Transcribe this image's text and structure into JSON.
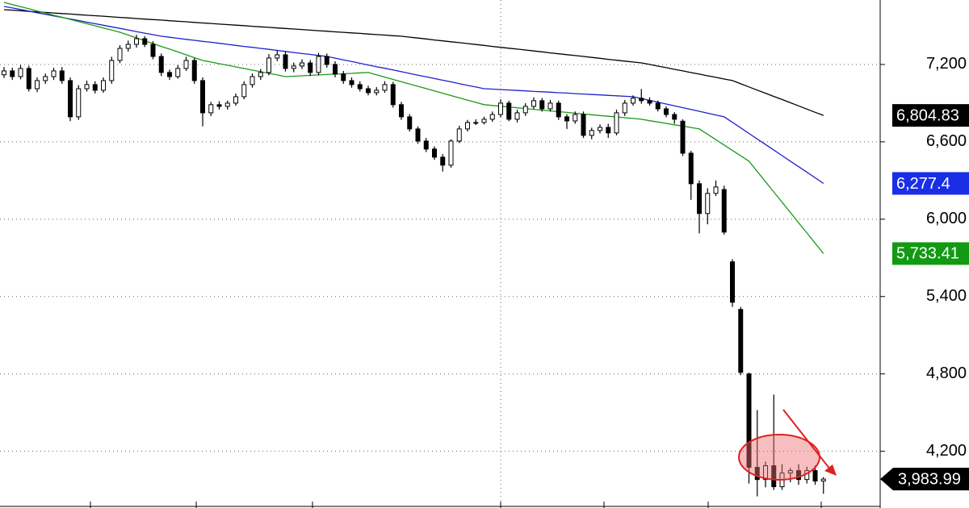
{
  "chart_data": {
    "type": "candlestick",
    "ylim": [
      3760,
      7700
    ],
    "yticks": [
      {
        "value": 4200,
        "label": "4,200"
      },
      {
        "value": 4800,
        "label": "4,800"
      },
      {
        "value": 5400,
        "label": "5,400"
      },
      {
        "value": 6000,
        "label": "6,000"
      },
      {
        "value": 6600,
        "label": "6,600"
      },
      {
        "value": 7200,
        "label": "7,200"
      }
    ],
    "grid": true,
    "up_color": "#ffffff",
    "down_color": "#000000",
    "open": [
      7120,
      7150,
      7106,
      7169,
      7012,
      7075,
      7106,
      7150,
      7075,
      6794,
      7012,
      7044,
      7000,
      7075,
      7231,
      7325,
      7356,
      7400,
      7356,
      7262,
      7138,
      7106,
      7169,
      7231,
      7075,
      6825,
      6888,
      6875,
      6900,
      6950,
      7044,
      7106,
      7138,
      7250,
      7275,
      7169,
      7188,
      7212,
      7138,
      7262,
      7200,
      7125,
      7075,
      7044,
      7012,
      6981,
      7000,
      7044,
      6888,
      6794,
      6700,
      6606,
      6544,
      6481,
      6419,
      6606,
      6700,
      6750,
      6750,
      6775,
      6812,
      6900,
      6775,
      6825,
      6875,
      6919,
      6856,
      6900,
      6794,
      6762,
      6812,
      6650,
      6688,
      6712,
      6669,
      6825,
      6900,
      6938,
      6919,
      6900,
      6856,
      6812,
      6760,
      6512,
      6275,
      6044,
      6200,
      6230,
      5669,
      5300,
      4800,
      4075,
      3981,
      4088,
      3925,
      4031,
      4050,
      3981,
      4050,
      3969
    ],
    "high": [
      7180,
      7175,
      7195,
      7190,
      7100,
      7130,
      7175,
      7180,
      7100,
      7040,
      7075,
      7070,
      7100,
      7260,
      7350,
      7385,
      7430,
      7420,
      7380,
      7285,
      7160,
      7195,
      7260,
      7250,
      7100,
      6910,
      6915,
      6920,
      6975,
      7070,
      7130,
      7165,
      7280,
      7310,
      7300,
      7215,
      7240,
      7235,
      7290,
      7285,
      7225,
      7150,
      7100,
      7070,
      7035,
      7025,
      7070,
      7065,
      6910,
      6815,
      6720,
      6630,
      6565,
      6505,
      6620,
      6725,
      6770,
      6775,
      6795,
      6835,
      6930,
      6920,
      6850,
      6900,
      6945,
      6940,
      6925,
      6920,
      6815,
      6835,
      6835,
      6710,
      6735,
      6740,
      6850,
      6925,
      6960,
      7010,
      6945,
      6920,
      6875,
      6830,
      6775,
      6530,
      6300,
      6240,
      6300,
      6260,
      5690,
      5320,
      4810,
      4520,
      4120,
      4640,
      4100,
      4070,
      4100,
      4080,
      4090,
      4000
    ],
    "low": [
      7095,
      7080,
      7085,
      6990,
      6985,
      7050,
      7080,
      7050,
      6760,
      6770,
      6990,
      6975,
      6980,
      7050,
      7210,
      7300,
      7330,
      7335,
      7240,
      7110,
      7080,
      7090,
      7150,
      7050,
      6720,
      6800,
      6850,
      6850,
      6880,
      6930,
      7020,
      7080,
      7115,
      7225,
      7145,
      7140,
      7165,
      7110,
      7115,
      7175,
      7100,
      7050,
      7020,
      6990,
      6960,
      6960,
      6980,
      6865,
      6770,
      6680,
      6585,
      6520,
      6460,
      6370,
      6400,
      6590,
      6680,
      6730,
      6735,
      6755,
      6790,
      6760,
      6750,
      6800,
      6855,
      6835,
      6835,
      6770,
      6700,
      6740,
      6630,
      6620,
      6665,
      6630,
      6650,
      6800,
      6880,
      6895,
      6880,
      6835,
      6790,
      6740,
      6490,
      6150,
      5890,
      5960,
      6180,
      5880,
      5320,
      4790,
      3950,
      3850,
      3920,
      3900,
      3900,
      3960,
      3940,
      3950,
      3940,
      3870
    ],
    "close": [
      7150,
      7106,
      7169,
      7012,
      7075,
      7106,
      7150,
      7075,
      6794,
      7012,
      7044,
      7000,
      7075,
      7231,
      7325,
      7356,
      7400,
      7356,
      7262,
      7138,
      7106,
      7169,
      7231,
      7075,
      6825,
      6888,
      6875,
      6900,
      6950,
      7044,
      7106,
      7138,
      7250,
      7275,
      7169,
      7188,
      7212,
      7138,
      7262,
      7200,
      7125,
      7075,
      7044,
      7012,
      6981,
      7000,
      7044,
      6888,
      6794,
      6700,
      6606,
      6544,
      6481,
      6419,
      6606,
      6700,
      6750,
      6750,
      6775,
      6812,
      6900,
      6775,
      6825,
      6875,
      6919,
      6856,
      6900,
      6794,
      6762,
      6812,
      6650,
      6688,
      6712,
      6669,
      6825,
      6900,
      6938,
      6919,
      6900,
      6856,
      6812,
      6775,
      6512,
      6275,
      6044,
      6200,
      6250,
      5900,
      5356,
      4812,
      4075,
      3981,
      4088,
      3925,
      4031,
      4050,
      3981,
      4050,
      3969,
      3983.99
    ],
    "series": [
      {
        "color": "#000000",
        "values": [
          7625,
          7621,
          7616,
          7612,
          7608,
          7604,
          7599,
          7595,
          7591,
          7586,
          7582,
          7578,
          7574,
          7569,
          7565,
          7561,
          7556,
          7552,
          7548,
          7544,
          7539,
          7535,
          7531,
          7526,
          7522,
          7518,
          7513,
          7509,
          7505,
          7501,
          7496,
          7492,
          7488,
          7483,
          7479,
          7475,
          7471,
          7466,
          7462,
          7458,
          7453,
          7449,
          7445,
          7441,
          7436,
          7432,
          7428,
          7423,
          7419,
          7412,
          7405,
          7398,
          7390,
          7383,
          7376,
          7369,
          7362,
          7355,
          7348,
          7340,
          7333,
          7326,
          7319,
          7312,
          7305,
          7298,
          7290,
          7283,
          7276,
          7269,
          7262,
          7255,
          7248,
          7240,
          7233,
          7226,
          7219,
          7212,
          7200,
          7187,
          7175,
          7162,
          7150,
          7137,
          7125,
          7112,
          7100,
          7087,
          7075,
          7050,
          7026,
          7001,
          6977,
          6952,
          6928,
          6903,
          6879,
          6854,
          6829,
          6804.83
        ]
      },
      {
        "color": "#2020cc",
        "values": [
          7650,
          7638,
          7626,
          7614,
          7601,
          7589,
          7577,
          7565,
          7553,
          7541,
          7528,
          7516,
          7504,
          7492,
          7480,
          7468,
          7455,
          7443,
          7431,
          7419,
          7411,
          7403,
          7395,
          7387,
          7379,
          7372,
          7364,
          7356,
          7348,
          7340,
          7333,
          7325,
          7317,
          7309,
          7301,
          7293,
          7285,
          7278,
          7270,
          7262,
          7249,
          7236,
          7223,
          7209,
          7196,
          7183,
          7170,
          7157,
          7144,
          7130,
          7117,
          7104,
          7091,
          7078,
          7065,
          7051,
          7038,
          7025,
          7012,
          7009,
          7005,
          7002,
          6998,
          6995,
          6991,
          6988,
          6985,
          6981,
          6978,
          6974,
          6971,
          6967,
          6964,
          6960,
          6957,
          6953,
          6950,
          6936,
          6922,
          6907,
          6893,
          6879,
          6865,
          6851,
          6837,
          6822,
          6808,
          6794,
          6751,
          6708,
          6665,
          6622,
          6579,
          6536,
          6493,
          6450,
          6407,
          6364,
          6321,
          6277.4
        ]
      },
      {
        "color": "#1a9a1a",
        "values": [
          7681,
          7665,
          7648,
          7632,
          7615,
          7599,
          7582,
          7566,
          7549,
          7533,
          7516,
          7500,
          7483,
          7467,
          7450,
          7428,
          7406,
          7384,
          7362,
          7340,
          7319,
          7297,
          7275,
          7253,
          7231,
          7219,
          7206,
          7194,
          7181,
          7169,
          7156,
          7144,
          7131,
          7119,
          7106,
          7109,
          7112,
          7116,
          7119,
          7122,
          7125,
          7128,
          7131,
          7135,
          7138,
          7120,
          7102,
          7084,
          7066,
          7048,
          7031,
          7013,
          6995,
          6977,
          6959,
          6941,
          6923,
          6906,
          6888,
          6882,
          6876,
          6870,
          6864,
          6858,
          6852,
          6846,
          6840,
          6834,
          6828,
          6822,
          6816,
          6810,
          6804,
          6798,
          6793,
          6787,
          6781,
          6775,
          6764,
          6754,
          6743,
          6732,
          6722,
          6711,
          6700,
          6658,
          6617,
          6575,
          6533,
          6492,
          6450,
          6370,
          6291,
          6211,
          6132,
          6052,
          5972,
          5893,
          5813,
          5733.41
        ]
      }
    ],
    "tags": [
      {
        "value": 6804.83,
        "label": "6,804.83",
        "color": "#000000"
      },
      {
        "value": 6277.4,
        "label": "6,277.4",
        "color": "#1a2ee6"
      },
      {
        "value": 5733.41,
        "label": "5,733.41",
        "color": "#139a13"
      }
    ],
    "last_close": {
      "value": 3983.99,
      "label": "3,983.99",
      "color": "#000000"
    }
  }
}
